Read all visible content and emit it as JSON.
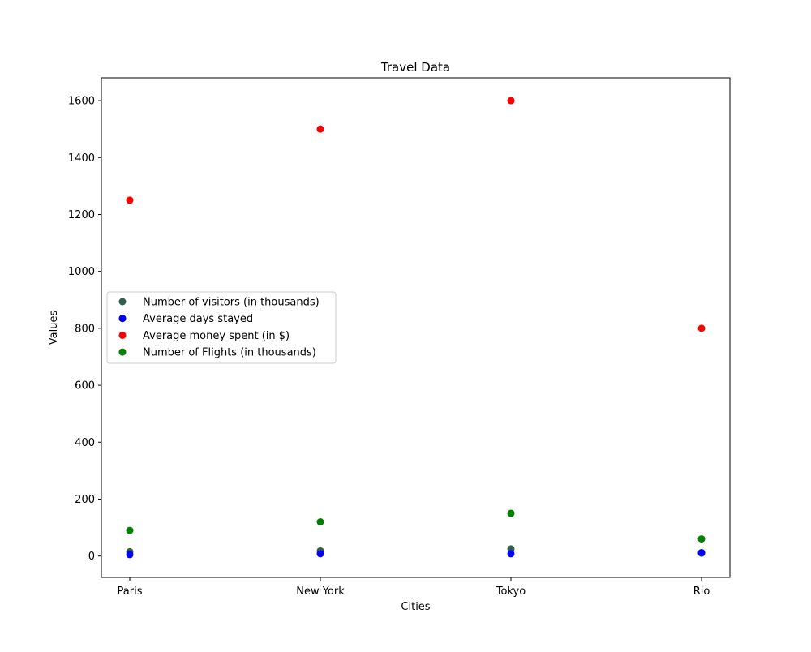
{
  "chart_data": {
    "type": "scatter",
    "title": "Travel Data",
    "xlabel": "Cities",
    "ylabel": "Values",
    "categories": [
      "Paris",
      "New York",
      "Tokyo",
      "Rio"
    ],
    "ylim": [
      -75,
      1680
    ],
    "yticks": [
      0,
      200,
      400,
      600,
      800,
      1000,
      1200,
      1400,
      1600
    ],
    "grid": false,
    "legend_position": "center-left",
    "series": [
      {
        "name": "Number of visitors (in thousands)",
        "color": "#2f5f4f",
        "values": [
          15,
          18,
          25,
          10
        ]
      },
      {
        "name": "Average days stayed",
        "color": "#0000ff",
        "values": [
          5,
          8,
          8,
          12
        ]
      },
      {
        "name": "Average money spent (in $)",
        "color": "#ff0000",
        "values": [
          1250,
          1500,
          1600,
          800
        ]
      },
      {
        "name": "Number of Flights (in thousands)",
        "color": "#008000",
        "values": [
          90,
          120,
          150,
          60
        ]
      }
    ]
  }
}
